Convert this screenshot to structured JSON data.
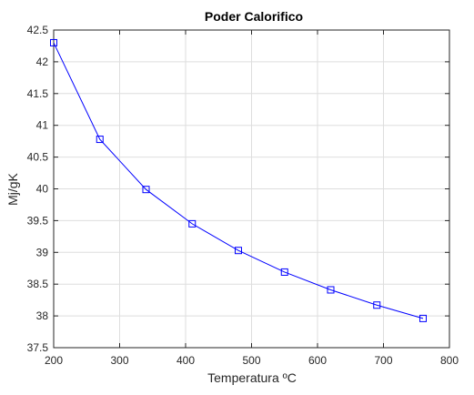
{
  "chart_data": {
    "type": "line",
    "title": "Poder Calorifico",
    "xlabel": "Temperatura ºC",
    "ylabel": "Mj/gK",
    "xlim": [
      200,
      800
    ],
    "ylim": [
      37.5,
      42.5
    ],
    "xticks": [
      "200",
      "300",
      "400",
      "500",
      "600",
      "700",
      "800"
    ],
    "yticks": [
      "37.5",
      "38",
      "38.5",
      "39",
      "39.5",
      "40",
      "40.5",
      "41",
      "41.5",
      "42",
      "42.5"
    ],
    "grid": true,
    "series": [
      {
        "marker": "square",
        "color": "#0000ff",
        "x": [
          200,
          270,
          340,
          410,
          480,
          550,
          620,
          690,
          760
        ],
        "y": [
          42.3,
          40.78,
          39.99,
          39.45,
          39.03,
          38.69,
          38.41,
          38.17,
          37.96
        ]
      }
    ]
  }
}
